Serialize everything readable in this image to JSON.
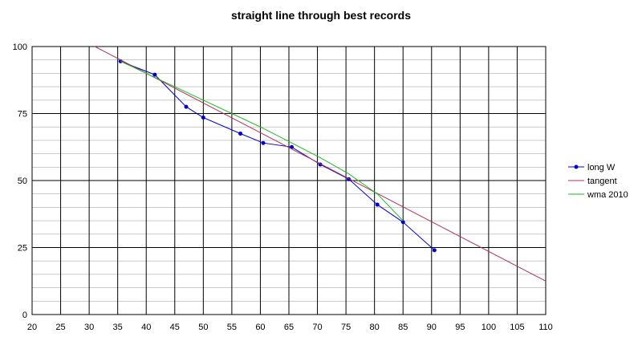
{
  "chart_data": {
    "type": "line",
    "title": "straight line through best records",
    "xlabel": "",
    "ylabel": "",
    "xlim": [
      20,
      110
    ],
    "ylim": [
      0,
      100
    ],
    "x_ticks": [
      "20",
      "25",
      "30",
      "35",
      "40",
      "45",
      "50",
      "55",
      "60",
      "65",
      "70",
      "75",
      "80",
      "85",
      "90",
      "95",
      "100",
      "105",
      "110"
    ],
    "y_ticks": [
      "0",
      "25",
      "50",
      "75",
      "100"
    ],
    "grid": "major and minor",
    "legend_position": "right",
    "series": [
      {
        "name": "long W",
        "color": "#0000cc",
        "marker": "dot",
        "x": [
          35.5,
          41.5,
          47,
          50,
          56.5,
          60.5,
          65.5,
          70.5,
          75.5,
          80.5,
          85,
          90.5
        ],
        "y": [
          94.5,
          89.5,
          77.5,
          73.5,
          67.5,
          64,
          62.5,
          56,
          50.5,
          41,
          34.5,
          24
        ]
      },
      {
        "name": "tangent",
        "color": "#b03060",
        "marker": "none",
        "x": [
          31,
          110
        ],
        "y": [
          100,
          12.5
        ]
      },
      {
        "name": "wma 2010",
        "color": "#22bb22",
        "marker": "none",
        "x": [
          35.5,
          41.5,
          47,
          50,
          56.5,
          60.5,
          65.5,
          70.5,
          75.5,
          80.5,
          85
        ],
        "y": [
          94.5,
          88.5,
          83,
          80,
          73.5,
          69.5,
          64,
          58.5,
          52.5,
          45,
          35
        ]
      }
    ]
  }
}
